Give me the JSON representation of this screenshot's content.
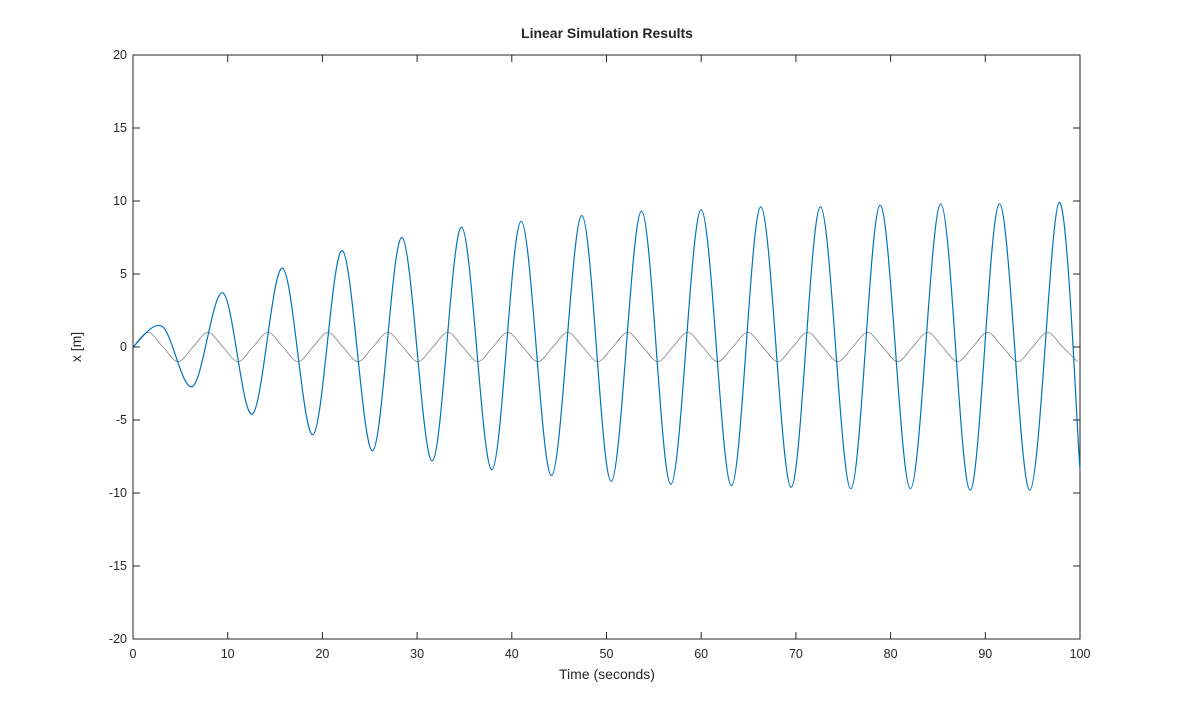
{
  "chart_data": {
    "type": "line",
    "title": "Linear Simulation Results",
    "xlabel": "Time (seconds)",
    "ylabel": "x [m]",
    "xlim": [
      0,
      100
    ],
    "ylim": [
      -20,
      20
    ],
    "x_ticks": [
      0,
      10,
      20,
      30,
      40,
      50,
      60,
      70,
      80,
      90,
      100
    ],
    "y_ticks": [
      -20,
      -15,
      -10,
      -5,
      0,
      5,
      10,
      15,
      20
    ],
    "grid": false,
    "legend": "none",
    "colors": {
      "input": "#7f7f7f",
      "response": "#0072bd",
      "axes": "#262626"
    },
    "series": [
      {
        "role": "input",
        "color": "#7f7f7f",
        "x": [
          0,
          1.58,
          3.17,
          4.75,
          6.33,
          7.92,
          9.5,
          11.08,
          12.67,
          14.25,
          15.83,
          17.42,
          19,
          20.58,
          22.17,
          23.75,
          25.33,
          26.92,
          28.5,
          30.08,
          31.67,
          33.25,
          34.83,
          36.42,
          38,
          39.58,
          41.17,
          42.75,
          44.33,
          45.92,
          47.5,
          49.08,
          50.67,
          52.25,
          53.83,
          55.42,
          57,
          58.58,
          60.17,
          61.75,
          63.33,
          64.92,
          66.5,
          68.08,
          69.67,
          71.25,
          72.83,
          74.42,
          76,
          77.58,
          79.17,
          80.75,
          82.33,
          83.92,
          85.5,
          87.08,
          88.67,
          90.25,
          91.83,
          93.42,
          95,
          96.58,
          98.17,
          99.75
        ],
        "y": [
          0,
          1,
          0,
          -1,
          0,
          1,
          0,
          -1,
          0,
          1,
          0,
          -1,
          0,
          1,
          0,
          -1,
          0,
          1,
          0,
          -1,
          0,
          1,
          0,
          -1,
          0,
          1,
          0,
          -1,
          0,
          1,
          0,
          -1,
          0,
          1,
          0,
          -1,
          0,
          1,
          0,
          -1,
          0,
          1,
          0,
          -1,
          0,
          1,
          0,
          -1,
          0,
          1,
          0,
          -1,
          0,
          1,
          0,
          -1,
          0,
          1,
          0,
          -1,
          0,
          1,
          0,
          -1
        ]
      },
      {
        "role": "response",
        "color": "#0072bd",
        "x": [
          0,
          3.1,
          6.3,
          9.5,
          12.6,
          15.8,
          19.0,
          22.1,
          25.3,
          28.4,
          31.6,
          34.7,
          37.9,
          41.0,
          44.2,
          47.4,
          50.5,
          53.7,
          56.8,
          60.0,
          63.2,
          66.3,
          69.5,
          72.6,
          75.8,
          78.9,
          82.1,
          85.3,
          88.4,
          91.5,
          94.7,
          97.8,
          100
        ],
        "y": [
          0,
          1.4,
          -2.7,
          3.7,
          -4.6,
          5.4,
          -6.0,
          6.6,
          -7.1,
          7.5,
          -7.8,
          8.2,
          -8.4,
          8.6,
          -8.8,
          9.0,
          -9.2,
          9.3,
          -9.4,
          9.4,
          -9.5,
          9.6,
          -9.6,
          9.6,
          -9.7,
          9.7,
          -9.7,
          9.8,
          -9.8,
          9.8,
          -9.8,
          9.9,
          -8.4
        ]
      }
    ]
  }
}
